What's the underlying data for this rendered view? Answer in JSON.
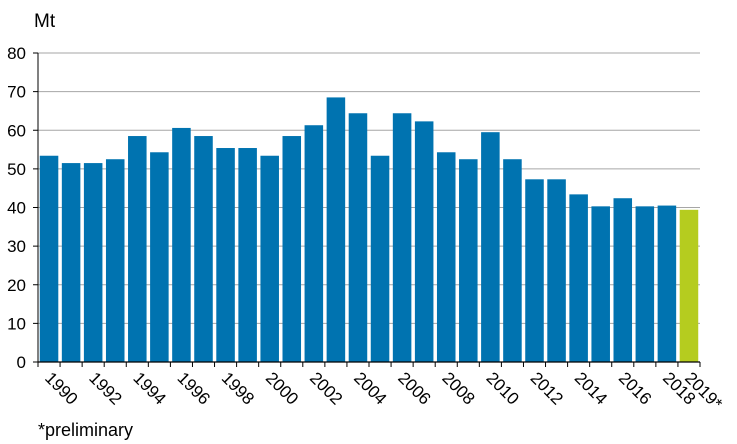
{
  "chart_data": {
    "type": "bar",
    "unit_label": "Mt",
    "note": "*preliminary",
    "categories": [
      "1990",
      "1991",
      "1992",
      "1993",
      "1994",
      "1995",
      "1996",
      "1997",
      "1998",
      "1999",
      "2000",
      "2001",
      "2002",
      "2003",
      "2004",
      "2005",
      "2006",
      "2007",
      "2008",
      "2009",
      "2010",
      "2011",
      "2012",
      "2013",
      "2014",
      "2015",
      "2016",
      "2017",
      "2018",
      "2019*"
    ],
    "x_tick_labels": [
      "1990",
      "",
      "1992",
      "",
      "1994",
      "",
      "1996",
      "",
      "1998",
      "",
      "2000",
      "",
      "2002",
      "",
      "2004",
      "",
      "2006",
      "",
      "2008",
      "",
      "2010",
      "",
      "2012",
      "",
      "2014",
      "",
      "2016",
      "",
      "2018",
      "2019*"
    ],
    "values": [
      53.4,
      51.5,
      51.5,
      52.5,
      58.5,
      54.3,
      60.6,
      58.5,
      55.4,
      55.4,
      53.4,
      58.5,
      61.3,
      68.5,
      64.4,
      53.4,
      64.4,
      62.3,
      54.3,
      52.5,
      59.5,
      52.5,
      47.3,
      47.3,
      43.4,
      40.3,
      42.4,
      40.3,
      40.5,
      39.4
    ],
    "y_ticks": [
      0,
      10,
      20,
      30,
      40,
      50,
      60,
      70,
      80
    ],
    "ylim": [
      0,
      80
    ],
    "grid": true,
    "colors": {
      "default": "#0073b0",
      "preliminary": "#b5cc1f",
      "grid": "#a6a6a6",
      "axis": "#000000"
    },
    "highlight_index": 29
  }
}
